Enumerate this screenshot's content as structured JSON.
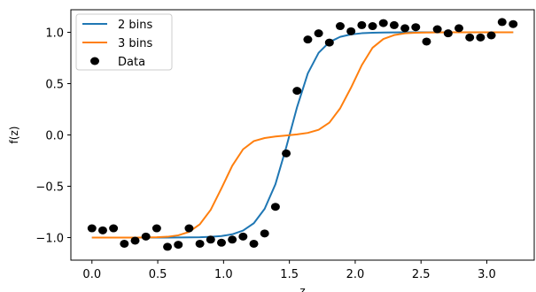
{
  "chart_data": {
    "type": "line",
    "title": "",
    "xlabel": "z",
    "ylabel": "f(z)",
    "xlim": [
      -0.16,
      3.36
    ],
    "ylim": [
      -1.22,
      1.22
    ],
    "xticks": [
      0.0,
      0.5,
      1.0,
      1.5,
      2.0,
      2.5,
      3.0
    ],
    "xtick_labels": [
      "0.0",
      "0.5",
      "1.0",
      "1.5",
      "2.0",
      "2.5",
      "3.0"
    ],
    "yticks": [
      -1.0,
      -0.5,
      0.0,
      0.5,
      1.0
    ],
    "ytick_labels": [
      "−1.0",
      "−0.5",
      "0.0",
      "0.5",
      "1.0"
    ],
    "grid": false,
    "legend_position": "top-left",
    "series": [
      {
        "name": "2 bins",
        "kind": "line",
        "color": "#1f77b4",
        "x": [
          0.0,
          0.082,
          0.164,
          0.246,
          0.328,
          0.41,
          0.492,
          0.574,
          0.656,
          0.738,
          0.82,
          0.902,
          0.984,
          1.066,
          1.148,
          1.23,
          1.312,
          1.394,
          1.476,
          1.558,
          1.64,
          1.722,
          1.804,
          1.886,
          1.968,
          2.05,
          2.132,
          2.214,
          2.296,
          2.378,
          2.46,
          2.542,
          2.624,
          2.706,
          2.788,
          2.87,
          2.952,
          3.034,
          3.116,
          3.2
        ],
        "y": [
          -1.0,
          -1.0,
          -1.0,
          -1.0,
          -1.0,
          -1.0,
          -1.0,
          -1.0,
          -0.999,
          -0.998,
          -0.997,
          -0.993,
          -0.985,
          -0.968,
          -0.932,
          -0.86,
          -0.72,
          -0.48,
          -0.12,
          0.27,
          0.6,
          0.8,
          0.905,
          0.956,
          0.98,
          0.991,
          0.996,
          0.998,
          0.999,
          1.0,
          1.0,
          1.0,
          1.0,
          1.0,
          1.0,
          1.0,
          1.0,
          1.0,
          1.0,
          1.0
        ]
      },
      {
        "name": "3 bins",
        "kind": "line",
        "color": "#ff7f0e",
        "x": [
          0.0,
          0.082,
          0.164,
          0.246,
          0.328,
          0.41,
          0.492,
          0.574,
          0.656,
          0.738,
          0.82,
          0.902,
          0.984,
          1.066,
          1.148,
          1.23,
          1.312,
          1.394,
          1.476,
          1.558,
          1.64,
          1.722,
          1.804,
          1.886,
          1.968,
          2.05,
          2.132,
          2.214,
          2.296,
          2.378,
          2.46,
          2.542,
          2.624,
          2.706,
          2.788,
          2.87,
          2.952,
          3.034,
          3.116,
          3.2
        ],
        "y": [
          -1.0,
          -1.0,
          -1.0,
          -1.0,
          -1.0,
          -0.999,
          -0.997,
          -0.992,
          -0.978,
          -0.945,
          -0.87,
          -0.73,
          -0.52,
          -0.3,
          -0.14,
          -0.06,
          -0.03,
          -0.015,
          -0.005,
          0.005,
          0.02,
          0.05,
          0.12,
          0.26,
          0.46,
          0.68,
          0.85,
          0.935,
          0.973,
          0.99,
          0.996,
          0.998,
          0.999,
          1.0,
          1.0,
          1.0,
          1.0,
          1.0,
          1.0,
          1.0
        ]
      },
      {
        "name": "Data",
        "kind": "scatter",
        "color": "#000000",
        "x": [
          0.0,
          0.082,
          0.164,
          0.246,
          0.328,
          0.41,
          0.492,
          0.574,
          0.656,
          0.738,
          0.82,
          0.902,
          0.984,
          1.066,
          1.148,
          1.23,
          1.312,
          1.394,
          1.476,
          1.558,
          1.64,
          1.722,
          1.804,
          1.886,
          1.968,
          2.05,
          2.132,
          2.214,
          2.296,
          2.378,
          2.46,
          2.542,
          2.624,
          2.706,
          2.788,
          2.87,
          2.952,
          3.034,
          3.116,
          3.2
        ],
        "y": [
          -0.91,
          -0.93,
          -0.91,
          -1.06,
          -1.03,
          -0.99,
          -0.91,
          -1.09,
          -1.07,
          -0.91,
          -1.06,
          -1.02,
          -1.05,
          -1.02,
          -0.99,
          -1.06,
          -0.96,
          -0.7,
          -0.18,
          0.43,
          0.93,
          0.99,
          0.9,
          1.06,
          1.01,
          1.07,
          1.06,
          1.09,
          1.07,
          1.04,
          1.05,
          0.91,
          1.03,
          0.99,
          1.04,
          0.95,
          0.95,
          0.97,
          1.1,
          1.08
        ]
      }
    ]
  }
}
